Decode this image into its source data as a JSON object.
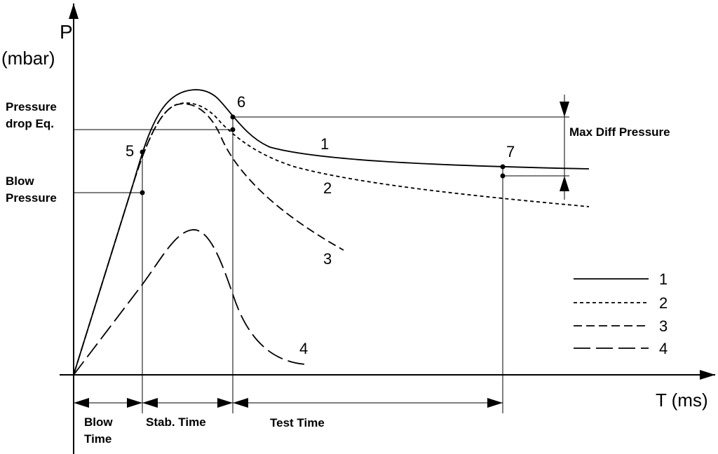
{
  "axes": {
    "y_label": "P",
    "y_unit": "(mbar)",
    "x_label": "T (ms)"
  },
  "levels": {
    "pressure_drop_eq": [
      "Pressure",
      "drop Eq."
    ],
    "blow_pressure": [
      "Blow",
      "Pressure"
    ],
    "max_diff": "Max Diff Pressure"
  },
  "curve_labels": [
    "1",
    "2",
    "3",
    "4"
  ],
  "points": [
    "5",
    "6",
    "7"
  ],
  "legend": [
    "1",
    "2",
    "3",
    "4"
  ],
  "intervals": {
    "blow_time": [
      "Blow",
      "Time"
    ],
    "stab_time": "Stab. Time",
    "test_time": "Test Time"
  }
}
